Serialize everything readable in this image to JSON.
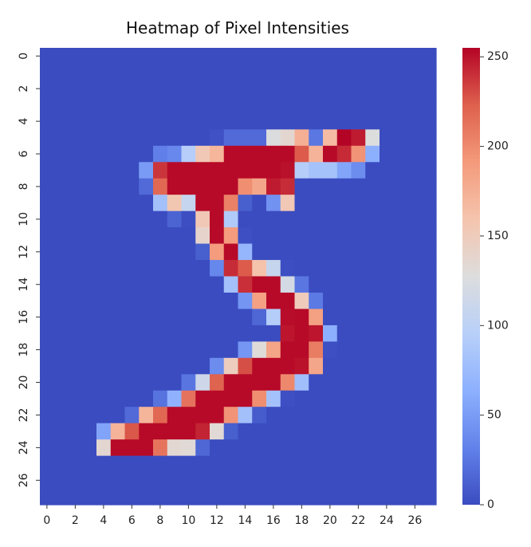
{
  "chart_data": {
    "type": "heatmap",
    "title": "Heatmap of Pixel Intensities",
    "xlabel": "",
    "ylabel": "",
    "x_tick_labels": [
      "0",
      "2",
      "4",
      "6",
      "8",
      "10",
      "12",
      "14",
      "16",
      "18",
      "20",
      "22",
      "24",
      "26"
    ],
    "y_tick_labels": [
      "0",
      "2",
      "4",
      "6",
      "8",
      "10",
      "12",
      "14",
      "16",
      "18",
      "20",
      "22",
      "24",
      "26"
    ],
    "colorbar": {
      "colormap": "coolwarm",
      "min": 0,
      "max": 255,
      "tick_labels": [
        "0",
        "50",
        "100",
        "150",
        "200",
        "250"
      ],
      "tick_values": [
        0,
        50,
        100,
        150,
        200,
        250
      ]
    },
    "colors": {
      "low": "#3b4cc0",
      "mid": "#dddddd",
      "high": "#b40426"
    },
    "grid": false,
    "values": [
      [
        0,
        0,
        0,
        0,
        0,
        0,
        0,
        0,
        0,
        0,
        0,
        0,
        0,
        0,
        0,
        0,
        0,
        0,
        0,
        0,
        0,
        0,
        0,
        0,
        0,
        0,
        0,
        0
      ],
      [
        0,
        0,
        0,
        0,
        0,
        0,
        0,
        0,
        0,
        0,
        0,
        0,
        0,
        0,
        0,
        0,
        0,
        0,
        0,
        0,
        0,
        0,
        0,
        0,
        0,
        0,
        0,
        0
      ],
      [
        0,
        0,
        0,
        0,
        0,
        0,
        0,
        0,
        0,
        0,
        0,
        0,
        0,
        0,
        0,
        0,
        0,
        0,
        0,
        0,
        0,
        0,
        0,
        0,
        0,
        0,
        0,
        0
      ],
      [
        0,
        0,
        0,
        0,
        0,
        0,
        0,
        0,
        0,
        0,
        0,
        0,
        0,
        0,
        0,
        0,
        0,
        0,
        0,
        0,
        0,
        0,
        0,
        0,
        0,
        0,
        0,
        0
      ],
      [
        0,
        0,
        0,
        0,
        0,
        0,
        0,
        0,
        0,
        0,
        0,
        0,
        0,
        0,
        0,
        0,
        0,
        0,
        0,
        0,
        0,
        0,
        0,
        0,
        0,
        0,
        0,
        0
      ],
      [
        0,
        0,
        0,
        0,
        0,
        0,
        0,
        0,
        0,
        0,
        0,
        0,
        3,
        18,
        18,
        18,
        126,
        136,
        175,
        26,
        166,
        255,
        247,
        127,
        0,
        0,
        0,
        0
      ],
      [
        0,
        0,
        0,
        0,
        0,
        0,
        0,
        0,
        30,
        36,
        94,
        154,
        170,
        253,
        253,
        253,
        253,
        253,
        225,
        172,
        253,
        242,
        195,
        64,
        0,
        0,
        0,
        0
      ],
      [
        0,
        0,
        0,
        0,
        0,
        0,
        0,
        49,
        238,
        253,
        253,
        253,
        253,
        253,
        253,
        253,
        253,
        251,
        93,
        82,
        82,
        56,
        39,
        0,
        0,
        0,
        0,
        0
      ],
      [
        0,
        0,
        0,
        0,
        0,
        0,
        0,
        18,
        219,
        253,
        253,
        253,
        253,
        253,
        198,
        182,
        247,
        241,
        0,
        0,
        0,
        0,
        0,
        0,
        0,
        0,
        0,
        0
      ],
      [
        0,
        0,
        0,
        0,
        0,
        0,
        0,
        0,
        80,
        156,
        107,
        253,
        253,
        205,
        11,
        0,
        43,
        154,
        0,
        0,
        0,
        0,
        0,
        0,
        0,
        0,
        0,
        0
      ],
      [
        0,
        0,
        0,
        0,
        0,
        0,
        0,
        0,
        0,
        14,
        1,
        154,
        253,
        90,
        0,
        0,
        0,
        0,
        0,
        0,
        0,
        0,
        0,
        0,
        0,
        0,
        0,
        0
      ],
      [
        0,
        0,
        0,
        0,
        0,
        0,
        0,
        0,
        0,
        0,
        0,
        139,
        253,
        190,
        2,
        0,
        0,
        0,
        0,
        0,
        0,
        0,
        0,
        0,
        0,
        0,
        0,
        0
      ],
      [
        0,
        0,
        0,
        0,
        0,
        0,
        0,
        0,
        0,
        0,
        0,
        11,
        190,
        253,
        70,
        0,
        0,
        0,
        0,
        0,
        0,
        0,
        0,
        0,
        0,
        0,
        0,
        0
      ],
      [
        0,
        0,
        0,
        0,
        0,
        0,
        0,
        0,
        0,
        0,
        0,
        0,
        35,
        241,
        225,
        160,
        108,
        1,
        0,
        0,
        0,
        0,
        0,
        0,
        0,
        0,
        0,
        0
      ],
      [
        0,
        0,
        0,
        0,
        0,
        0,
        0,
        0,
        0,
        0,
        0,
        0,
        0,
        81,
        240,
        253,
        253,
        119,
        25,
        0,
        0,
        0,
        0,
        0,
        0,
        0,
        0,
        0
      ],
      [
        0,
        0,
        0,
        0,
        0,
        0,
        0,
        0,
        0,
        0,
        0,
        0,
        0,
        0,
        45,
        186,
        253,
        253,
        150,
        27,
        0,
        0,
        0,
        0,
        0,
        0,
        0,
        0
      ],
      [
        0,
        0,
        0,
        0,
        0,
        0,
        0,
        0,
        0,
        0,
        0,
        0,
        0,
        0,
        0,
        16,
        93,
        252,
        253,
        187,
        0,
        0,
        0,
        0,
        0,
        0,
        0,
        0
      ],
      [
        0,
        0,
        0,
        0,
        0,
        0,
        0,
        0,
        0,
        0,
        0,
        0,
        0,
        0,
        0,
        0,
        0,
        249,
        253,
        249,
        64,
        0,
        0,
        0,
        0,
        0,
        0,
        0
      ],
      [
        0,
        0,
        0,
        0,
        0,
        0,
        0,
        0,
        0,
        0,
        0,
        0,
        0,
        0,
        46,
        130,
        183,
        253,
        253,
        207,
        2,
        0,
        0,
        0,
        0,
        0,
        0,
        0
      ],
      [
        0,
        0,
        0,
        0,
        0,
        0,
        0,
        0,
        0,
        0,
        0,
        0,
        39,
        148,
        229,
        253,
        253,
        253,
        250,
        182,
        0,
        0,
        0,
        0,
        0,
        0,
        0,
        0
      ],
      [
        0,
        0,
        0,
        0,
        0,
        0,
        0,
        0,
        0,
        0,
        24,
        114,
        221,
        253,
        253,
        253,
        253,
        201,
        78,
        0,
        0,
        0,
        0,
        0,
        0,
        0,
        0,
        0
      ],
      [
        0,
        0,
        0,
        0,
        0,
        0,
        0,
        0,
        23,
        66,
        213,
        253,
        253,
        253,
        253,
        198,
        81,
        2,
        0,
        0,
        0,
        0,
        0,
        0,
        0,
        0,
        0,
        0
      ],
      [
        0,
        0,
        0,
        0,
        0,
        0,
        18,
        171,
        219,
        253,
        253,
        253,
        253,
        195,
        80,
        9,
        0,
        0,
        0,
        0,
        0,
        0,
        0,
        0,
        0,
        0,
        0,
        0
      ],
      [
        0,
        0,
        0,
        0,
        55,
        172,
        226,
        253,
        253,
        253,
        253,
        244,
        133,
        11,
        0,
        0,
        0,
        0,
        0,
        0,
        0,
        0,
        0,
        0,
        0,
        0,
        0,
        0
      ],
      [
        0,
        0,
        0,
        0,
        136,
        253,
        253,
        253,
        212,
        135,
        132,
        16,
        0,
        0,
        0,
        0,
        0,
        0,
        0,
        0,
        0,
        0,
        0,
        0,
        0,
        0,
        0,
        0
      ],
      [
        0,
        0,
        0,
        0,
        0,
        0,
        0,
        0,
        0,
        0,
        0,
        0,
        0,
        0,
        0,
        0,
        0,
        0,
        0,
        0,
        0,
        0,
        0,
        0,
        0,
        0,
        0,
        0
      ],
      [
        0,
        0,
        0,
        0,
        0,
        0,
        0,
        0,
        0,
        0,
        0,
        0,
        0,
        0,
        0,
        0,
        0,
        0,
        0,
        0,
        0,
        0,
        0,
        0,
        0,
        0,
        0,
        0
      ],
      [
        0,
        0,
        0,
        0,
        0,
        0,
        0,
        0,
        0,
        0,
        0,
        0,
        0,
        0,
        0,
        0,
        0,
        0,
        0,
        0,
        0,
        0,
        0,
        0,
        0,
        0,
        0,
        0
      ]
    ]
  }
}
